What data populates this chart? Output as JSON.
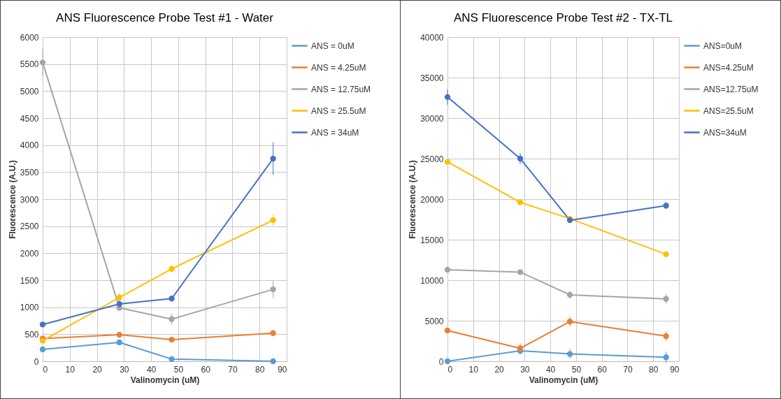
{
  "chart_data": [
    {
      "type": "line",
      "title": "ANS Fluorescence Probe Test #1 - Water",
      "xlabel": "Valinomycin (uM)",
      "ylabel": "Fluorescence (A.U.)",
      "x": [
        0,
        28.3,
        47.6,
        85
      ],
      "xlim": [
        0,
        90
      ],
      "xticks": [
        0,
        10,
        20,
        30,
        40,
        50,
        60,
        70,
        80,
        90
      ],
      "ylim": [
        0,
        6000
      ],
      "yticks": [
        0,
        500,
        1000,
        1500,
        2000,
        2500,
        3000,
        3500,
        4000,
        4500,
        5000,
        5500,
        6000
      ],
      "grid": true,
      "legend": "right",
      "marker": "circle",
      "series": [
        {
          "name": "ANS = 0uM",
          "color": "#5b9bd5",
          "values": [
            220,
            350,
            40,
            0
          ],
          "errors": [
            20,
            25,
            15,
            10
          ]
        },
        {
          "name": "ANS = 4.25uM",
          "color": "#ed7d31",
          "values": [
            420,
            490,
            400,
            520
          ],
          "errors": [
            30,
            20,
            20,
            40
          ]
        },
        {
          "name": "ANS = 12.75uM",
          "color": "#a5a5a5",
          "values": [
            5530,
            990,
            780,
            1330
          ],
          "errors": [
            250,
            60,
            100,
            160
          ]
        },
        {
          "name": "ANS = 25.5uM",
          "color": "#ffc000",
          "values": [
            380,
            1180,
            1710,
            2610
          ],
          "errors": [
            40,
            70,
            60,
            100
          ]
        },
        {
          "name": "ANS = 34uM",
          "color": "#4472c4",
          "values": [
            680,
            1060,
            1160,
            3750
          ],
          "errors": [
            30,
            30,
            20,
            300
          ]
        }
      ]
    },
    {
      "type": "line",
      "title": "ANS Fluorescence Probe Test #2 - TX-TL",
      "xlabel": "Valinomycin (uM)",
      "ylabel": "Fluorescence (A.U.)",
      "x": [
        0,
        28.3,
        47.6,
        85
      ],
      "xlim": [
        0,
        90
      ],
      "xticks": [
        0,
        10,
        20,
        30,
        40,
        50,
        60,
        70,
        80,
        90
      ],
      "ylim": [
        0,
        40000
      ],
      "yticks": [
        0,
        5000,
        10000,
        15000,
        20000,
        25000,
        30000,
        35000,
        40000
      ],
      "grid": true,
      "legend": "right",
      "marker": "circle",
      "series": [
        {
          "name": "ANS=0uM",
          "color": "#5b9bd5",
          "values": [
            0,
            1300,
            900,
            500
          ],
          "errors": [
            200,
            500,
            600,
            700
          ]
        },
        {
          "name": "ANS=4.25uM",
          "color": "#ed7d31",
          "values": [
            3800,
            1600,
            4900,
            3100
          ],
          "errors": [
            150,
            600,
            600,
            600
          ]
        },
        {
          "name": "ANS=12.75uM",
          "color": "#a5a5a5",
          "values": [
            11300,
            11000,
            8200,
            7700
          ],
          "errors": [
            150,
            200,
            500,
            600
          ]
        },
        {
          "name": "ANS=25.5uM",
          "color": "#ffc000",
          "values": [
            24600,
            19600,
            17600,
            13200
          ],
          "errors": [
            150,
            300,
            200,
            200
          ]
        },
        {
          "name": "ANS=34uM",
          "color": "#4472c4",
          "values": [
            32600,
            25000,
            17400,
            19200
          ],
          "errors": [
            950,
            700,
            300,
            400
          ]
        }
      ]
    }
  ]
}
